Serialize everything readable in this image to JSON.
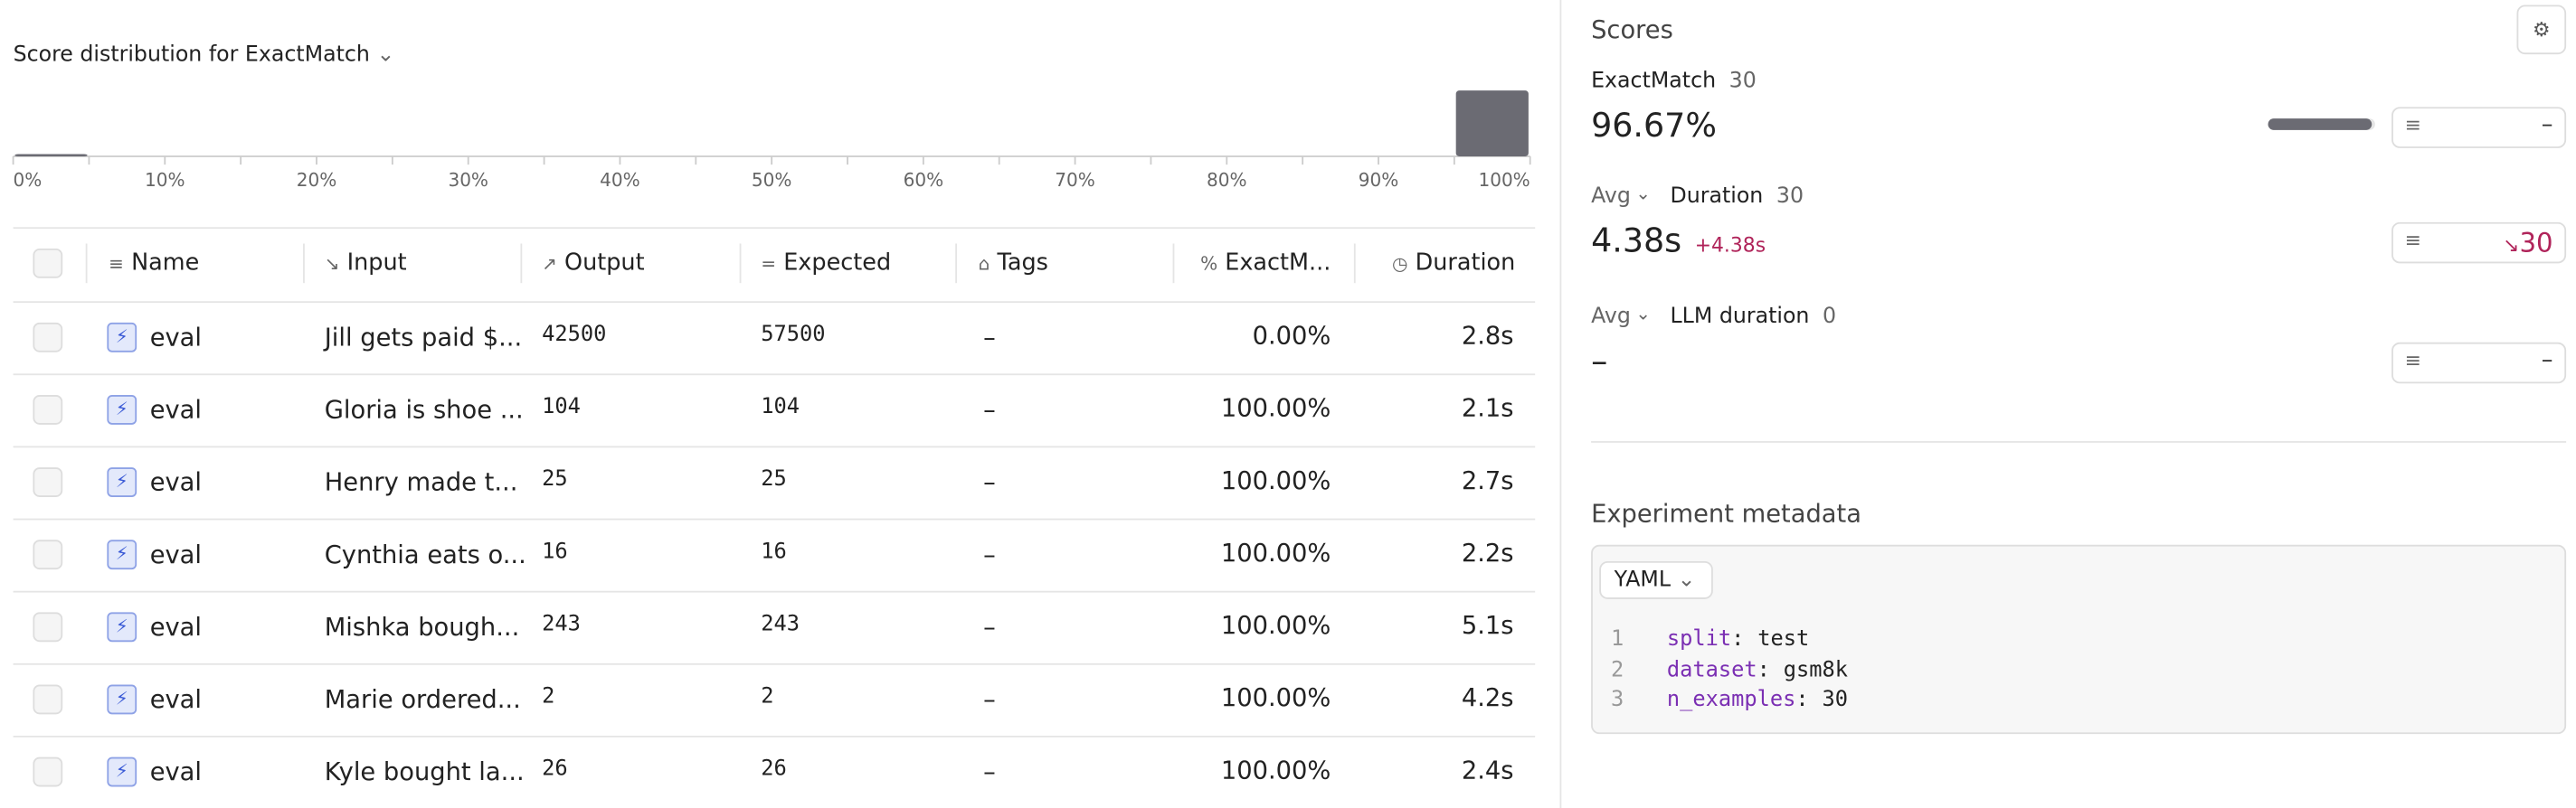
{
  "distribution": {
    "label": "Score distribution for",
    "metric": "ExactMatch",
    "ticks": [
      "0%",
      "10%",
      "20%",
      "30%",
      "40%",
      "50%",
      "60%",
      "70%",
      "80%",
      "90%",
      "100%"
    ],
    "counts": [
      1,
      0,
      0,
      0,
      0,
      0,
      0,
      0,
      0,
      0,
      0,
      0,
      0,
      0,
      0,
      0,
      0,
      0,
      0,
      29
    ]
  },
  "table": {
    "columns": [
      "Name",
      "Input",
      "Output",
      "Expected",
      "Tags",
      "ExactM...",
      "Duration"
    ],
    "rows": [
      [
        "eval",
        "Jill gets paid $...",
        "42500",
        "57500",
        "–",
        "0.00%",
        "2.8s"
      ],
      [
        "eval",
        "Gloria is shoe ...",
        "104",
        "104",
        "–",
        "100.00%",
        "2.1s"
      ],
      [
        "eval",
        "Henry made t...",
        "25",
        "25",
        "–",
        "100.00%",
        "2.7s"
      ],
      [
        "eval",
        "Cynthia eats o...",
        "16",
        "16",
        "–",
        "100.00%",
        "2.2s"
      ],
      [
        "eval",
        "Mishka bough...",
        "243",
        "243",
        "–",
        "100.00%",
        "5.1s"
      ],
      [
        "eval",
        "Marie ordered...",
        "2",
        "2",
        "–",
        "100.00%",
        "4.2s"
      ],
      [
        "eval",
        "Kyle bought la...",
        "26",
        "26",
        "–",
        "100.00%",
        "2.4s"
      ]
    ]
  },
  "scores": {
    "title": "Scores",
    "items": [
      {
        "name": "ExactMatch",
        "count": 30,
        "value": 96.67,
        "value_label": "96.67%",
        "filter": "–"
      },
      {
        "prefix": "Avg",
        "name": "Duration",
        "count": 30,
        "value_label": "4.38s",
        "delta": "+4.38s",
        "filter": "30"
      },
      {
        "prefix": "Avg",
        "name": "LLM duration",
        "count": 0,
        "value_label": "–",
        "filter": "–"
      }
    ]
  },
  "metadata": {
    "title": "Experiment metadata",
    "format": "YAML",
    "lines": [
      {
        "number": 1,
        "key": "split",
        "value": "test"
      },
      {
        "number": 2,
        "key": "dataset",
        "value": "gsm8k"
      },
      {
        "number": 3,
        "key": "n_examples",
        "value": "30"
      }
    ]
  }
}
